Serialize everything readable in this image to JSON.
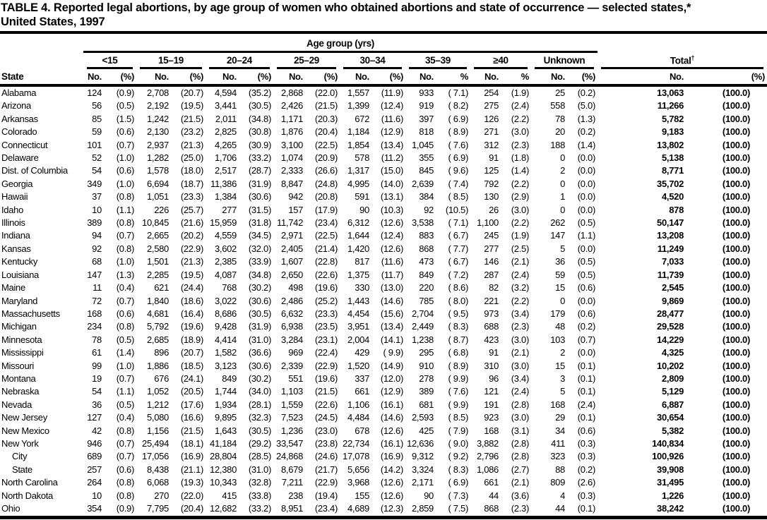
{
  "title_line1": "TABLE 4. Reported legal abortions, by age group of women who obtained abortions and state of occurrence — selected states,*",
  "title_line2": "United States, 1997",
  "table": {
    "spanner": "Age group (yrs)",
    "state_header": "State",
    "groups": [
      {
        "label": "<15",
        "no": "No.",
        "pct": "(%)"
      },
      {
        "label": "15–19",
        "no": "No.",
        "pct": "(%)"
      },
      {
        "label": "20–24",
        "no": "No.",
        "pct": "(%)"
      },
      {
        "label": "25–29",
        "no": "No.",
        "pct": "(%)"
      },
      {
        "label": "30–34",
        "no": "No.",
        "pct": "(%)"
      },
      {
        "label": "35–39",
        "no": "No.",
        "pct": "%"
      },
      {
        "label": "≥40",
        "no": "No.",
        "pct": "%"
      },
      {
        "label": "Unknown",
        "no": "No.",
        "pct": "(%)"
      },
      {
        "label": "Total",
        "sup": "†",
        "no": "No.",
        "pct": "(%)"
      }
    ],
    "rows": [
      {
        "state": "Alabama",
        "indent": false,
        "cells": [
          "124",
          "(0.9)",
          "2,708",
          "(20.7)",
          "4,594",
          "(35.2)",
          "2,868",
          "(22.0)",
          "1,557",
          "(11.9)",
          "933",
          "( 7.1)",
          "254",
          "(1.9)",
          "25",
          "(0.2)",
          "13,063",
          "(100.0)"
        ]
      },
      {
        "state": "Arizona",
        "indent": false,
        "cells": [
          "56",
          "(0.5)",
          "2,192",
          "(19.5)",
          "3,441",
          "(30.5)",
          "2,426",
          "(21.5)",
          "1,399",
          "(12.4)",
          "919",
          "( 8.2)",
          "275",
          "(2.4)",
          "558",
          "(5.0)",
          "11,266",
          "(100.0)"
        ]
      },
      {
        "state": "Arkansas",
        "indent": false,
        "cells": [
          "85",
          "(1.5)",
          "1,242",
          "(21.5)",
          "2,011",
          "(34.8)",
          "1,171",
          "(20.3)",
          "672",
          "(11.6)",
          "397",
          "( 6.9)",
          "126",
          "(2.2)",
          "78",
          "(1.3)",
          "5,782",
          "(100.0)"
        ]
      },
      {
        "state": "Colorado",
        "indent": false,
        "cells": [
          "59",
          "(0.6)",
          "2,130",
          "(23.2)",
          "2,825",
          "(30.8)",
          "1,876",
          "(20.4)",
          "1,184",
          "(12.9)",
          "818",
          "( 8.9)",
          "271",
          "(3.0)",
          "20",
          "(0.2)",
          "9,183",
          "(100.0)"
        ]
      },
      {
        "state": "Connecticut",
        "indent": false,
        "cells": [
          "101",
          "(0.7)",
          "2,937",
          "(21.3)",
          "4,265",
          "(30.9)",
          "3,100",
          "(22.5)",
          "1,854",
          "(13.4)",
          "1,045",
          "( 7.6)",
          "312",
          "(2.3)",
          "188",
          "(1.4)",
          "13,802",
          "(100.0)"
        ]
      },
      {
        "state": "Delaware",
        "indent": false,
        "cells": [
          "52",
          "(1.0)",
          "1,282",
          "(25.0)",
          "1,706",
          "(33.2)",
          "1,074",
          "(20.9)",
          "578",
          "(11.2)",
          "355",
          "( 6.9)",
          "91",
          "(1.8)",
          "0",
          "(0.0)",
          "5,138",
          "(100.0)"
        ]
      },
      {
        "state": "Dist. of Columbia",
        "indent": false,
        "cells": [
          "54",
          "(0.6)",
          "1,578",
          "(18.0)",
          "2,517",
          "(28.7)",
          "2,333",
          "(26.6)",
          "1,317",
          "(15.0)",
          "845",
          "( 9.6)",
          "125",
          "(1.4)",
          "2",
          "(0.0)",
          "8,771",
          "(100.0)"
        ]
      },
      {
        "state": "Georgia",
        "indent": false,
        "cells": [
          "349",
          "(1.0)",
          "6,694",
          "(18.7)",
          "11,386",
          "(31.9)",
          "8,847",
          "(24.8)",
          "4,995",
          "(14.0)",
          "2,639",
          "( 7.4)",
          "792",
          "(2.2)",
          "0",
          "(0.0)",
          "35,702",
          "(100.0)"
        ]
      },
      {
        "state": "Hawaii",
        "indent": false,
        "cells": [
          "37",
          "(0.8)",
          "1,051",
          "(23.3)",
          "1,384",
          "(30.6)",
          "942",
          "(20.8)",
          "591",
          "(13.1)",
          "384",
          "( 8.5)",
          "130",
          "(2.9)",
          "1",
          "(0.0)",
          "4,520",
          "(100.0)"
        ]
      },
      {
        "state": "Idaho",
        "indent": false,
        "cells": [
          "10",
          "(1.1)",
          "226",
          "(25.7)",
          "277",
          "(31.5)",
          "157",
          "(17.9)",
          "90",
          "(10.3)",
          "92",
          "(10.5)",
          "26",
          "(3.0)",
          "0",
          "(0.0)",
          "878",
          "(100.0)"
        ]
      },
      {
        "state": "Illinois",
        "indent": false,
        "cells": [
          "389",
          "(0.8)",
          "10,845",
          "(21.6)",
          "15,959",
          "(31.8)",
          "11,742",
          "(23.4)",
          "6,312",
          "(12.6)",
          "3,538",
          "( 7.1)",
          "1,100",
          "(2.2)",
          "262",
          "(0.5)",
          "50,147",
          "(100.0)"
        ]
      },
      {
        "state": "Indiana",
        "indent": false,
        "cells": [
          "94",
          "(0.7)",
          "2,665",
          "(20.2)",
          "4,559",
          "(34.5)",
          "2,971",
          "(22.5)",
          "1,644",
          "(12.4)",
          "883",
          "( 6.7)",
          "245",
          "(1.9)",
          "147",
          "(1.1)",
          "13,208",
          "(100.0)"
        ]
      },
      {
        "state": "Kansas",
        "indent": false,
        "cells": [
          "92",
          "(0.8)",
          "2,580",
          "(22.9)",
          "3,602",
          "(32.0)",
          "2,405",
          "(21.4)",
          "1,420",
          "(12.6)",
          "868",
          "( 7.7)",
          "277",
          "(2.5)",
          "5",
          "(0.0)",
          "11,249",
          "(100.0)"
        ]
      },
      {
        "state": "Kentucky",
        "indent": false,
        "cells": [
          "68",
          "(1.0)",
          "1,501",
          "(21.3)",
          "2,385",
          "(33.9)",
          "1,607",
          "(22.8)",
          "817",
          "(11.6)",
          "473",
          "( 6.7)",
          "146",
          "(2.1)",
          "36",
          "(0.5)",
          "7,033",
          "(100.0)"
        ]
      },
      {
        "state": "Louisiana",
        "indent": false,
        "cells": [
          "147",
          "(1.3)",
          "2,285",
          "(19.5)",
          "4,087",
          "(34.8)",
          "2,650",
          "(22.6)",
          "1,375",
          "(11.7)",
          "849",
          "( 7.2)",
          "287",
          "(2.4)",
          "59",
          "(0.5)",
          "11,739",
          "(100.0)"
        ]
      },
      {
        "state": "Maine",
        "indent": false,
        "cells": [
          "11",
          "(0.4)",
          "621",
          "(24.4)",
          "768",
          "(30.2)",
          "498",
          "(19.6)",
          "330",
          "(13.0)",
          "220",
          "( 8.6)",
          "82",
          "(3.2)",
          "15",
          "(0.6)",
          "2,545",
          "(100.0)"
        ]
      },
      {
        "state": "Maryland",
        "indent": false,
        "cells": [
          "72",
          "(0.7)",
          "1,840",
          "(18.6)",
          "3,022",
          "(30.6)",
          "2,486",
          "(25.2)",
          "1,443",
          "(14.6)",
          "785",
          "( 8.0)",
          "221",
          "(2.2)",
          "0",
          "(0.0)",
          "9,869",
          "(100.0)"
        ]
      },
      {
        "state": "Massachusetts",
        "indent": false,
        "cells": [
          "168",
          "(0.6)",
          "4,681",
          "(16.4)",
          "8,686",
          "(30.5)",
          "6,632",
          "(23.3)",
          "4,454",
          "(15.6)",
          "2,704",
          "( 9.5)",
          "973",
          "(3.4)",
          "179",
          "(0.6)",
          "28,477",
          "(100.0)"
        ]
      },
      {
        "state": "Michigan",
        "indent": false,
        "cells": [
          "234",
          "(0.8)",
          "5,792",
          "(19.6)",
          "9,428",
          "(31.9)",
          "6,938",
          "(23.5)",
          "3,951",
          "(13.4)",
          "2,449",
          "( 8.3)",
          "688",
          "(2.3)",
          "48",
          "(0.2)",
          "29,528",
          "(100.0)"
        ]
      },
      {
        "state": "Minnesota",
        "indent": false,
        "cells": [
          "78",
          "(0.5)",
          "2,685",
          "(18.9)",
          "4,414",
          "(31.0)",
          "3,284",
          "(23.1)",
          "2,004",
          "(14.1)",
          "1,238",
          "( 8.7)",
          "423",
          "(3.0)",
          "103",
          "(0.7)",
          "14,229",
          "(100.0)"
        ]
      },
      {
        "state": "Mississippi",
        "indent": false,
        "cells": [
          "61",
          "(1.4)",
          "896",
          "(20.7)",
          "1,582",
          "(36.6)",
          "969",
          "(22.4)",
          "429",
          "( 9.9)",
          "295",
          "( 6.8)",
          "91",
          "(2.1)",
          "2",
          "(0.0)",
          "4,325",
          "(100.0)"
        ]
      },
      {
        "state": "Missouri",
        "indent": false,
        "cells": [
          "99",
          "(1.0)",
          "1,886",
          "(18.5)",
          "3,123",
          "(30.6)",
          "2,339",
          "(22.9)",
          "1,520",
          "(14.9)",
          "910",
          "( 8.9)",
          "310",
          "(3.0)",
          "15",
          "(0.1)",
          "10,202",
          "(100.0)"
        ]
      },
      {
        "state": "Montana",
        "indent": false,
        "cells": [
          "19",
          "(0.7)",
          "676",
          "(24.1)",
          "849",
          "(30.2)",
          "551",
          "(19.6)",
          "337",
          "(12.0)",
          "278",
          "( 9.9)",
          "96",
          "(3.4)",
          "3",
          "(0.1)",
          "2,809",
          "(100.0)"
        ]
      },
      {
        "state": "Nebraska",
        "indent": false,
        "cells": [
          "54",
          "(1.1)",
          "1,052",
          "(20.5)",
          "1,744",
          "(34.0)",
          "1,103",
          "(21.5)",
          "661",
          "(12.9)",
          "389",
          "( 7.6)",
          "121",
          "(2.4)",
          "5",
          "(0.1)",
          "5,129",
          "(100.0)"
        ]
      },
      {
        "state": "Nevada",
        "indent": false,
        "cells": [
          "36",
          "(0.5)",
          "1,212",
          "(17.6)",
          "1,934",
          "(28.1)",
          "1,559",
          "(22.6)",
          "1,106",
          "(16.1)",
          "681",
          "( 9.9)",
          "191",
          "(2.8)",
          "168",
          "(2.4)",
          "6,887",
          "(100.0)"
        ]
      },
      {
        "state": "New Jersey",
        "indent": false,
        "cells": [
          "127",
          "(0.4)",
          "5,080",
          "(16.6)",
          "9,895",
          "(32.3)",
          "7,523",
          "(24.5)",
          "4,484",
          "(14.6)",
          "2,593",
          "( 8.5)",
          "923",
          "(3.0)",
          "29",
          "(0.1)",
          "30,654",
          "(100.0)"
        ]
      },
      {
        "state": "New Mexico",
        "indent": false,
        "cells": [
          "42",
          "(0.8)",
          "1,156",
          "(21.5)",
          "1,643",
          "(30.5)",
          "1,236",
          "(23.0)",
          "678",
          "(12.6)",
          "425",
          "( 7.9)",
          "168",
          "(3.1)",
          "34",
          "(0.6)",
          "5,382",
          "(100.0)"
        ]
      },
      {
        "state": "New York",
        "indent": false,
        "cells": [
          "946",
          "(0.7)",
          "25,494",
          "(18.1)",
          "41,184",
          "(29.2)",
          "33,547",
          "(23.8)",
          "22,734",
          "(16.1)",
          "12,636",
          "( 9.0)",
          "3,882",
          "(2.8)",
          "411",
          "(0.3)",
          "140,834",
          "(100.0)"
        ]
      },
      {
        "state": "City",
        "indent": true,
        "cells": [
          "689",
          "(0.7)",
          "17,056",
          "(16.9)",
          "28,804",
          "(28.5)",
          "24,868",
          "(24.6)",
          "17,078",
          "(16.9)",
          "9,312",
          "( 9.2)",
          "2,796",
          "(2.8)",
          "323",
          "(0.3)",
          "100,926",
          "(100.0)"
        ]
      },
      {
        "state": "State",
        "indent": true,
        "cells": [
          "257",
          "(0.6)",
          "8,438",
          "(21.1)",
          "12,380",
          "(31.0)",
          "8,679",
          "(21.7)",
          "5,656",
          "(14.2)",
          "3,324",
          "( 8.3)",
          "1,086",
          "(2.7)",
          "88",
          "(0.2)",
          "39,908",
          "(100.0)"
        ]
      },
      {
        "state": "North Carolina",
        "indent": false,
        "cells": [
          "264",
          "(0.8)",
          "6,068",
          "(19.3)",
          "10,343",
          "(32.8)",
          "7,211",
          "(22.9)",
          "3,968",
          "(12.6)",
          "2,171",
          "( 6.9)",
          "661",
          "(2.1)",
          "809",
          "(2.6)",
          "31,495",
          "(100.0)"
        ]
      },
      {
        "state": "North Dakota",
        "indent": false,
        "cells": [
          "10",
          "(0.8)",
          "270",
          "(22.0)",
          "415",
          "(33.8)",
          "238",
          "(19.4)",
          "155",
          "(12.6)",
          "90",
          "( 7.3)",
          "44",
          "(3.6)",
          "4",
          "(0.3)",
          "1,226",
          "(100.0)"
        ]
      },
      {
        "state": "Ohio",
        "indent": false,
        "cells": [
          "354",
          "(0.9)",
          "7,795",
          "(20.4)",
          "12,682",
          "(33.2)",
          "8,951",
          "(23.4)",
          "4,689",
          "(12.3)",
          "2,859",
          "( 7.5)",
          "868",
          "(2.3)",
          "44",
          "(0.1)",
          "38,242",
          "(100.0)"
        ]
      }
    ]
  }
}
